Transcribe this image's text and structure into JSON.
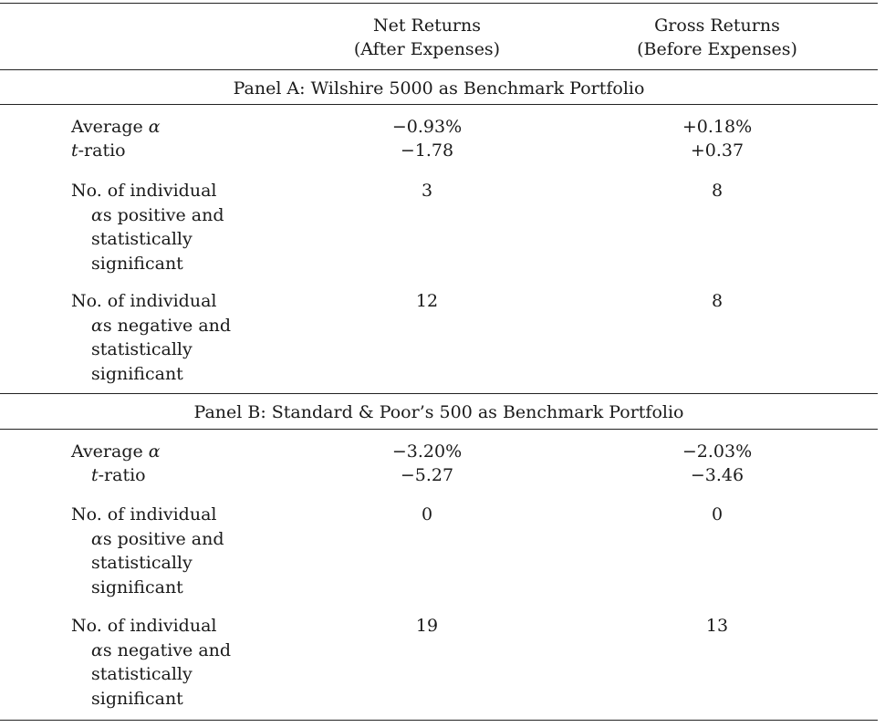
{
  "header": {
    "net_line1": "Net Returns",
    "net_line2": "(After Expenses)",
    "gross_line1": "Gross Returns",
    "gross_line2": "(Before Expenses)"
  },
  "panels": [
    {
      "title": "Panel A: Wilshire 5000 as Benchmark Portfolio",
      "avg_label": "Average",
      "alpha_symbol": "α",
      "t_label_t": "t",
      "t_label_rest": "-ratio",
      "avg_net": "−0.93%",
      "avg_gross": "+0.18%",
      "t_net": "−1.78",
      "t_gross": "+0.37",
      "pos_line1": "No. of individual",
      "pos_line2_rest": "s positive and",
      "pos_line3": "statistically",
      "pos_line4": "significant",
      "pos_net": "3",
      "pos_gross": "8",
      "neg_line1": "No. of individual",
      "neg_line2_rest": "s negative and",
      "neg_line3": "statistically",
      "neg_line4": "significant",
      "neg_net": "12",
      "neg_gross": "8"
    },
    {
      "title": "Panel B: Standard & Poor’s 500 as Benchmark Portfolio",
      "avg_label": "Average",
      "alpha_symbol": "α",
      "t_label_t": "t",
      "t_label_rest": "-ratio",
      "avg_net": "−3.20%",
      "avg_gross": "−2.03%",
      "t_net": "−5.27",
      "t_gross": "−3.46",
      "pos_line1": "No. of individual",
      "pos_line2_rest": "s positive and",
      "pos_line3": "statistically",
      "pos_line4": "significant",
      "pos_net": "0",
      "pos_gross": "0",
      "neg_line1": "No. of individual",
      "neg_line2_rest": "s negative and",
      "neg_line3": "statistically",
      "neg_line4": "significant",
      "neg_net": "19",
      "neg_gross": "13"
    }
  ]
}
